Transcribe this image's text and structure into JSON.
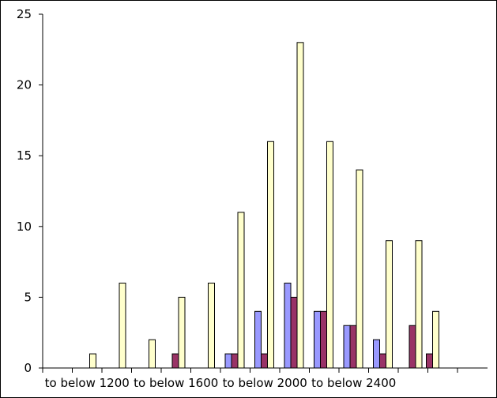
{
  "chart_data": {
    "type": "bar",
    "categories": [
      "",
      "to below 1200",
      "",
      "",
      "to below 1600",
      "",
      "",
      "to below 2000",
      "",
      "",
      "to below 2400",
      "",
      ""
    ],
    "series": [
      {
        "values": [
          0,
          0,
          0,
          0,
          0,
          0,
          1,
          4,
          6,
          4,
          3,
          2,
          0
        ]
      },
      {
        "values": [
          0,
          0,
          0,
          0,
          1,
          0,
          1,
          1,
          5,
          4,
          3,
          1,
          3
        ]
      },
      {
        "values": [
          0,
          1,
          6,
          2,
          5,
          6,
          11,
          16,
          23,
          16,
          14,
          9,
          9
        ]
      }
    ],
    "overflow": {
      "values": [
        6,
        4
      ],
      "series_index": [
        2,
        2
      ],
      "series1_value": 1
    },
    "y_ticks": [
      0,
      5,
      10,
      15,
      20,
      25
    ],
    "ylim": [
      0,
      25
    ],
    "colors": {
      "series": [
        "#9999ff",
        "#993366",
        "#ffffcc"
      ],
      "outline": "#000000"
    },
    "grid": false,
    "legend": "none"
  }
}
